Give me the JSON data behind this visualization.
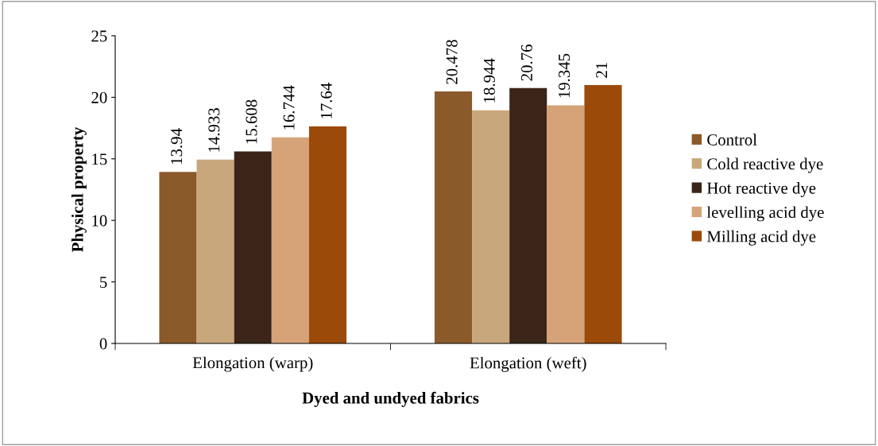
{
  "chart_data": {
    "type": "bar",
    "xlabel": "Dyed and undyed fabrics",
    "ylabel": "Physical property",
    "categories": [
      "Elongation (warp)",
      "Elongation (weft)"
    ],
    "series": [
      {
        "name": "Control",
        "color": "#8b5a2b",
        "values": [
          13.94,
          20.478
        ]
      },
      {
        "name": "Cold reactive dye",
        "color": "#c9a77c",
        "values": [
          14.933,
          18.944
        ]
      },
      {
        "name": "Hot reactive dye",
        "color": "#3b2418",
        "values": [
          15.608,
          20.76
        ]
      },
      {
        "name": "levelling acid dye",
        "color": "#d6a378",
        "values": [
          16.744,
          19.345
        ]
      },
      {
        "name": "Milling acid dye",
        "color": "#9c4a0a",
        "values": [
          17.64,
          21
        ]
      }
    ],
    "ylim": [
      0,
      25
    ],
    "yticks": [
      0,
      5,
      10,
      15,
      20,
      25
    ],
    "grid": false,
    "legend": "right",
    "data_labels": true
  }
}
